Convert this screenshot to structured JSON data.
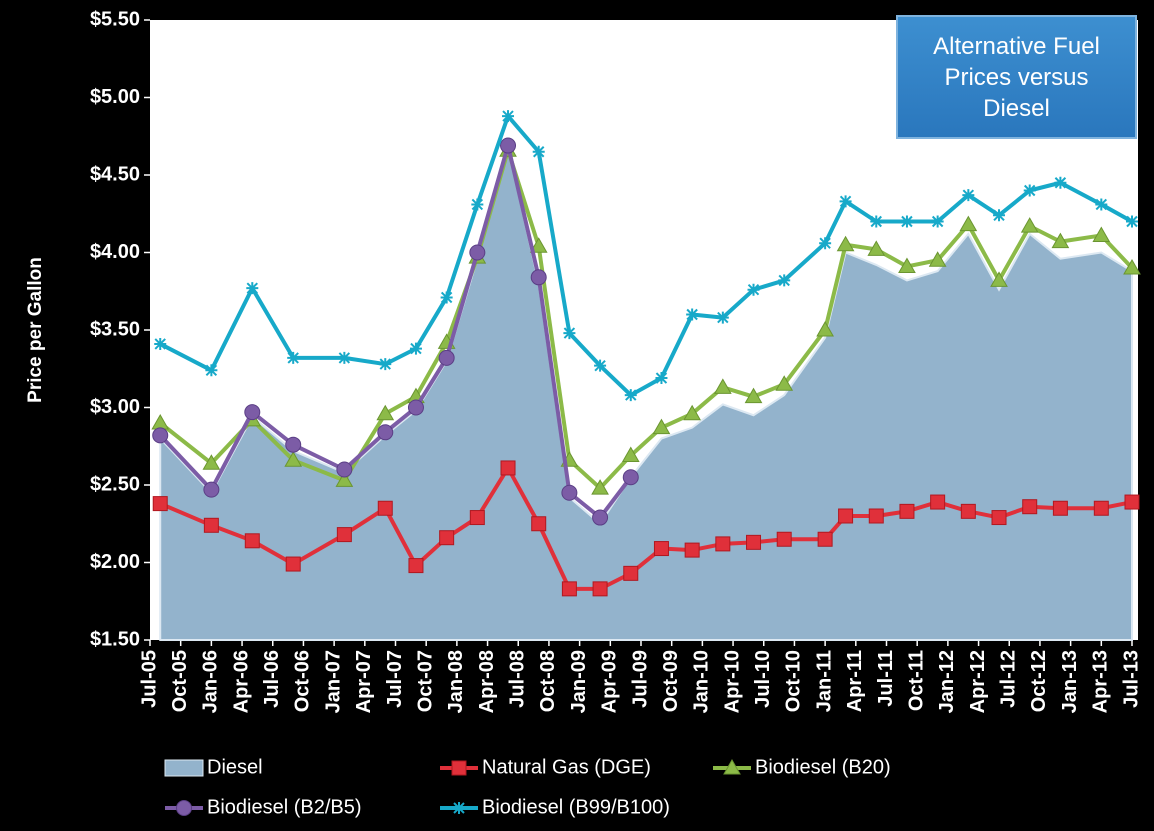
{
  "chart_data": {
    "type": "line",
    "title": "Alternative Fuel Prices versus Diesel",
    "y_label": "Price per Gallon",
    "x": [
      1,
      6,
      10,
      14,
      19,
      23,
      26,
      29,
      32,
      35,
      38,
      41,
      44,
      47,
      50,
      53,
      56,
      59,
      62,
      66,
      68,
      71,
      74,
      77,
      80,
      83,
      86,
      89,
      93,
      96
    ],
    "xlim": [
      0,
      96
    ],
    "xticks": [
      {
        "value": 0,
        "label": "Jul-05"
      },
      {
        "value": 3,
        "label": "Oct-05"
      },
      {
        "value": 6,
        "label": "Jan-06"
      },
      {
        "value": 9,
        "label": "Apr-06"
      },
      {
        "value": 12,
        "label": "Jul-06"
      },
      {
        "value": 15,
        "label": "Oct-06"
      },
      {
        "value": 18,
        "label": "Jan-07"
      },
      {
        "value": 21,
        "label": "Apr-07"
      },
      {
        "value": 24,
        "label": "Jul-07"
      },
      {
        "value": 27,
        "label": "Oct-07"
      },
      {
        "value": 30,
        "label": "Jan-08"
      },
      {
        "value": 33,
        "label": "Apr-08"
      },
      {
        "value": 36,
        "label": "Jul-08"
      },
      {
        "value": 39,
        "label": "Oct-08"
      },
      {
        "value": 42,
        "label": "Jan-09"
      },
      {
        "value": 45,
        "label": "Apr-09"
      },
      {
        "value": 48,
        "label": "Jul-09"
      },
      {
        "value": 51,
        "label": "Oct-09"
      },
      {
        "value": 54,
        "label": "Jan-10"
      },
      {
        "value": 57,
        "label": "Apr-10"
      },
      {
        "value": 60,
        "label": "Jul-10"
      },
      {
        "value": 63,
        "label": "Oct-10"
      },
      {
        "value": 66,
        "label": "Jan-11"
      },
      {
        "value": 69,
        "label": "Apr-11"
      },
      {
        "value": 72,
        "label": "Jul-11"
      },
      {
        "value": 75,
        "label": "Oct-11"
      },
      {
        "value": 78,
        "label": "Jan-12"
      },
      {
        "value": 81,
        "label": "Apr-12"
      },
      {
        "value": 84,
        "label": "Jul-12"
      },
      {
        "value": 87,
        "label": "Oct-12"
      },
      {
        "value": 90,
        "label": "Jan-13"
      },
      {
        "value": 93,
        "label": "Apr-13"
      },
      {
        "value": 96,
        "label": "Jul-13"
      }
    ],
    "ylim": [
      1.5,
      5.5
    ],
    "yticks": [
      {
        "value": 1.5,
        "label": "$1.50"
      },
      {
        "value": 2,
        "label": "$2.00"
      },
      {
        "value": 2.5,
        "label": "$2.50"
      },
      {
        "value": 3,
        "label": "$3.00"
      },
      {
        "value": 3.5,
        "label": "$3.50"
      },
      {
        "value": 4,
        "label": "$4.00"
      },
      {
        "value": 4.5,
        "label": "$4.50"
      },
      {
        "value": 5,
        "label": "$5.00"
      },
      {
        "value": 5.5,
        "label": "$5.50"
      }
    ],
    "legend": "bottom",
    "series": [
      {
        "name": "Diesel",
        "kind": "area",
        "color": "#93b3cc",
        "values": [
          2.8,
          2.45,
          2.94,
          2.72,
          2.58,
          2.82,
          2.98,
          3.3,
          3.96,
          4.68,
          3.8,
          2.42,
          2.25,
          2.55,
          2.8,
          2.87,
          3.02,
          2.95,
          3.08,
          3.45,
          4.0,
          3.92,
          3.82,
          3.88,
          4.12,
          3.76,
          4.12,
          3.96,
          4.0,
          3.88
        ]
      },
      {
        "name": "Natural Gas (DGE)",
        "kind": "line",
        "marker": "square",
        "color": "#e0303a",
        "values": [
          2.38,
          2.24,
          2.14,
          1.99,
          2.18,
          2.35,
          1.98,
          2.16,
          2.29,
          2.61,
          2.25,
          1.83,
          1.83,
          1.93,
          2.09,
          2.08,
          2.12,
          2.13,
          2.15,
          2.15,
          2.3,
          2.3,
          2.33,
          2.39,
          2.33,
          2.29,
          2.36,
          2.35,
          2.35,
          2.39
        ]
      },
      {
        "name": "Biodiesel (B20)",
        "kind": "line",
        "marker": "triangle",
        "color": "#8cba48",
        "values": [
          2.9,
          2.64,
          2.92,
          2.66,
          2.53,
          2.96,
          3.07,
          3.42,
          3.97,
          4.66,
          4.04,
          2.66,
          2.48,
          2.69,
          2.87,
          2.96,
          3.13,
          3.07,
          3.15,
          3.5,
          4.05,
          4.02,
          3.91,
          3.95,
          4.18,
          3.82,
          4.17,
          4.07,
          4.11,
          3.9
        ]
      },
      {
        "name": "Biodiesel (B2/B5)",
        "kind": "line",
        "marker": "circle",
        "color": "#7c5ca6",
        "values": [
          2.82,
          2.47,
          2.97,
          2.76,
          2.6,
          2.84,
          3.0,
          3.32,
          4.0,
          4.69,
          3.84,
          2.45,
          2.29,
          2.55,
          null,
          null,
          null,
          null,
          null,
          null,
          null,
          null,
          null,
          null,
          null,
          null,
          null,
          null,
          null,
          null
        ]
      },
      {
        "name": "Biodiesel (B99/B100)",
        "kind": "line",
        "marker": "star",
        "color": "#17a9c9",
        "values": [
          3.41,
          3.24,
          3.77,
          3.32,
          3.32,
          3.28,
          3.38,
          3.71,
          4.31,
          4.88,
          4.65,
          3.48,
          3.27,
          3.08,
          3.19,
          3.6,
          3.58,
          3.76,
          3.82,
          4.06,
          4.33,
          4.2,
          4.2,
          4.2,
          4.37,
          4.24,
          4.4,
          4.45,
          4.31,
          4.2
        ]
      }
    ]
  }
}
